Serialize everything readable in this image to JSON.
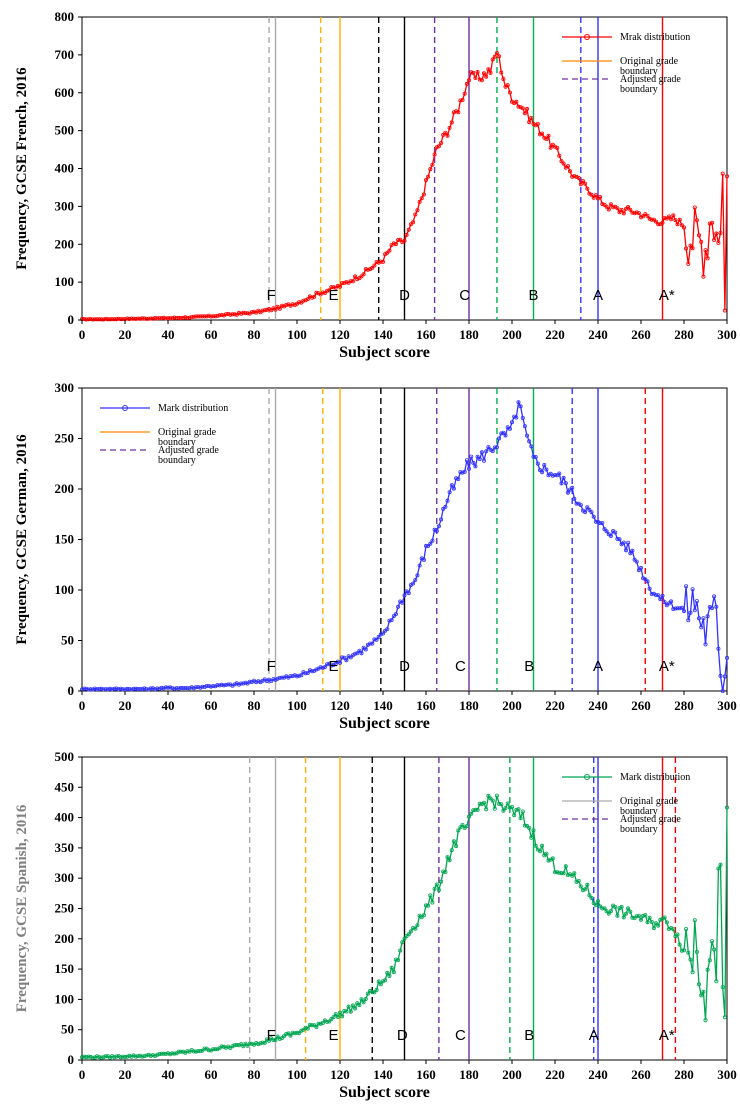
{
  "chart_data": [
    {
      "type": "line",
      "ylabel": "Frequency,  GCSE French, 2016",
      "ylabel_color": "#000000",
      "xlabel": "Subject score",
      "xlim": [
        0,
        300
      ],
      "xticks": [
        0,
        20,
        40,
        60,
        80,
        100,
        120,
        140,
        160,
        180,
        200,
        220,
        240,
        260,
        280,
        300
      ],
      "ylim": [
        0,
        800
      ],
      "yticks": [
        0,
        100,
        200,
        300,
        400,
        500,
        600,
        700,
        800
      ],
      "color": "#ff0000",
      "legend": {
        "position": "top-right",
        "series": "Mrak distribution",
        "original": "Original grade boundary",
        "adjusted": "Adjusted grade boundary",
        "original_color": "#ff8800",
        "adjusted_color": "#7030a0"
      },
      "grade_labels": [
        {
          "text": "F",
          "x": 88
        },
        {
          "text": "E",
          "x": 117
        },
        {
          "text": "D",
          "x": 150
        },
        {
          "text": "C",
          "x": 178
        },
        {
          "text": "B",
          "x": 210
        },
        {
          "text": "A",
          "x": 240
        },
        {
          "text": "A*",
          "x": 272
        }
      ],
      "boundaries": [
        {
          "x": 87,
          "color": "#aaaaaa",
          "style": "dashed"
        },
        {
          "x": 90,
          "color": "#aaaaaa",
          "style": "solid"
        },
        {
          "x": 111,
          "color": "#ffb000",
          "style": "dashed"
        },
        {
          "x": 120,
          "color": "#ffb000",
          "style": "solid"
        },
        {
          "x": 138,
          "color": "#000000",
          "style": "dashed"
        },
        {
          "x": 150,
          "color": "#000000",
          "style": "solid"
        },
        {
          "x": 164,
          "color": "#7030a0",
          "style": "dashed"
        },
        {
          "x": 180,
          "color": "#7030a0",
          "style": "solid"
        },
        {
          "x": 193,
          "color": "#00b050",
          "style": "dashed"
        },
        {
          "x": 210,
          "color": "#00b050",
          "style": "solid"
        },
        {
          "x": 232,
          "color": "#3333ff",
          "style": "dashed"
        },
        {
          "x": 240,
          "color": "#3333ff",
          "style": "solid"
        },
        {
          "x": 270,
          "color": "#ff0000",
          "style": "solid"
        }
      ],
      "curve": [
        [
          0,
          2
        ],
        [
          10,
          2
        ],
        [
          20,
          3
        ],
        [
          30,
          4
        ],
        [
          40,
          5
        ],
        [
          50,
          7
        ],
        [
          60,
          10
        ],
        [
          70,
          15
        ],
        [
          80,
          20
        ],
        [
          90,
          30
        ],
        [
          100,
          45
        ],
        [
          110,
          70
        ],
        [
          120,
          90
        ],
        [
          130,
          120
        ],
        [
          140,
          160
        ],
        [
          145,
          200
        ],
        [
          150,
          210
        ],
        [
          155,
          270
        ],
        [
          160,
          360
        ],
        [
          165,
          450
        ],
        [
          170,
          500
        ],
        [
          175,
          560
        ],
        [
          180,
          640
        ],
        [
          185,
          640
        ],
        [
          190,
          660
        ],
        [
          193,
          710
        ],
        [
          197,
          620
        ],
        [
          200,
          590
        ],
        [
          205,
          560
        ],
        [
          210,
          520
        ],
        [
          215,
          490
        ],
        [
          220,
          450
        ],
        [
          225,
          410
        ],
        [
          230,
          370
        ],
        [
          235,
          350
        ],
        [
          240,
          320
        ],
        [
          245,
          300
        ],
        [
          250,
          290
        ],
        [
          255,
          290
        ],
        [
          260,
          280
        ],
        [
          265,
          265
        ],
        [
          270,
          260
        ],
        [
          275,
          270
        ],
        [
          280,
          250
        ],
        [
          285,
          220
        ],
        [
          290,
          200
        ],
        [
          293,
          300
        ],
        [
          296,
          200
        ],
        [
          298,
          380
        ],
        [
          299,
          5
        ],
        [
          300,
          390
        ]
      ]
    },
    {
      "type": "line",
      "ylabel": "Frequency,  GCSE German, 2016",
      "ylabel_color": "#000000",
      "xlabel": "Subject score",
      "xlim": [
        0,
        300
      ],
      "xticks": [
        0,
        20,
        40,
        60,
        80,
        100,
        120,
        140,
        160,
        180,
        200,
        220,
        240,
        260,
        280,
        300
      ],
      "ylim": [
        0,
        300
      ],
      "yticks": [
        0,
        50,
        100,
        150,
        200,
        250,
        300
      ],
      "color": "#3333ff",
      "legend": {
        "position": "top-left",
        "series": "Mark distribution",
        "original": "Original grade boundary",
        "adjusted": "Adjusted grade boundary",
        "original_color": "#ff8800",
        "adjusted_color": "#7030a0"
      },
      "grade_labels": [
        {
          "text": "F",
          "x": 88
        },
        {
          "text": "E",
          "x": 117
        },
        {
          "text": "D",
          "x": 150
        },
        {
          "text": "C",
          "x": 176
        },
        {
          "text": "B",
          "x": 208
        },
        {
          "text": "A",
          "x": 240
        },
        {
          "text": "A*",
          "x": 272
        }
      ],
      "boundaries": [
        {
          "x": 87,
          "color": "#aaaaaa",
          "style": "dashed"
        },
        {
          "x": 90,
          "color": "#aaaaaa",
          "style": "solid"
        },
        {
          "x": 112,
          "color": "#ffb000",
          "style": "dashed"
        },
        {
          "x": 120,
          "color": "#ffb000",
          "style": "solid"
        },
        {
          "x": 139,
          "color": "#000000",
          "style": "dashed"
        },
        {
          "x": 150,
          "color": "#000000",
          "style": "solid"
        },
        {
          "x": 165,
          "color": "#7030a0",
          "style": "dashed"
        },
        {
          "x": 180,
          "color": "#7030a0",
          "style": "solid"
        },
        {
          "x": 193,
          "color": "#00b050",
          "style": "dashed"
        },
        {
          "x": 210,
          "color": "#00b050",
          "style": "solid"
        },
        {
          "x": 228,
          "color": "#3333ff",
          "style": "dashed"
        },
        {
          "x": 240,
          "color": "#3333ff",
          "style": "solid"
        },
        {
          "x": 262,
          "color": "#ff0000",
          "style": "dashed"
        },
        {
          "x": 270,
          "color": "#ff0000",
          "style": "solid"
        }
      ],
      "curve": [
        [
          0,
          2
        ],
        [
          10,
          2
        ],
        [
          20,
          2
        ],
        [
          30,
          2
        ],
        [
          40,
          3
        ],
        [
          50,
          3
        ],
        [
          60,
          5
        ],
        [
          70,
          6
        ],
        [
          80,
          9
        ],
        [
          90,
          12
        ],
        [
          100,
          15
        ],
        [
          110,
          22
        ],
        [
          120,
          30
        ],
        [
          130,
          40
        ],
        [
          140,
          55
        ],
        [
          145,
          75
        ],
        [
          150,
          95
        ],
        [
          155,
          110
        ],
        [
          160,
          140
        ],
        [
          165,
          160
        ],
        [
          170,
          190
        ],
        [
          175,
          210
        ],
        [
          180,
          225
        ],
        [
          185,
          230
        ],
        [
          190,
          240
        ],
        [
          195,
          250
        ],
        [
          200,
          260
        ],
        [
          203,
          285
        ],
        [
          207,
          250
        ],
        [
          210,
          230
        ],
        [
          215,
          220
        ],
        [
          220,
          215
        ],
        [
          225,
          205
        ],
        [
          230,
          190
        ],
        [
          235,
          180
        ],
        [
          240,
          165
        ],
        [
          245,
          160
        ],
        [
          250,
          150
        ],
        [
          255,
          140
        ],
        [
          260,
          120
        ],
        [
          265,
          100
        ],
        [
          270,
          90
        ],
        [
          275,
          85
        ],
        [
          280,
          80
        ],
        [
          285,
          90
        ],
        [
          290,
          60
        ],
        [
          295,
          80
        ],
        [
          298,
          5
        ],
        [
          300,
          50
        ]
      ]
    },
    {
      "type": "line",
      "ylabel": "Frequency,  GCSE Spanish, 2016",
      "ylabel_color": "#7f7f7f",
      "xlabel": "Subject score",
      "xlim": [
        0,
        300
      ],
      "xticks": [
        0,
        20,
        40,
        60,
        80,
        100,
        120,
        140,
        160,
        180,
        200,
        220,
        240,
        260,
        280,
        300
      ],
      "ylim": [
        0,
        500
      ],
      "yticks": [
        0,
        50,
        100,
        150,
        200,
        250,
        300,
        350,
        400,
        450,
        500
      ],
      "color": "#00a651",
      "legend": {
        "position": "top-right",
        "series": "Mark distribution",
        "original": "Original grade boundary",
        "adjusted": "Adjusted grade boundary",
        "original_color": "#aaaaaa",
        "adjusted_color": "#7030a0"
      },
      "grade_labels": [
        {
          "text": "F",
          "x": 88
        },
        {
          "text": "E",
          "x": 117
        },
        {
          "text": "D",
          "x": 149
        },
        {
          "text": "C",
          "x": 176
        },
        {
          "text": "B",
          "x": 208
        },
        {
          "text": "A",
          "x": 238
        },
        {
          "text": "A*",
          "x": 272
        }
      ],
      "boundaries": [
        {
          "x": 78,
          "color": "#aaaaaa",
          "style": "dashed"
        },
        {
          "x": 90,
          "color": "#aaaaaa",
          "style": "solid"
        },
        {
          "x": 104,
          "color": "#ffb000",
          "style": "dashed"
        },
        {
          "x": 120,
          "color": "#ffb000",
          "style": "solid"
        },
        {
          "x": 135,
          "color": "#000000",
          "style": "dashed"
        },
        {
          "x": 150,
          "color": "#000000",
          "style": "solid"
        },
        {
          "x": 166,
          "color": "#7030a0",
          "style": "dashed"
        },
        {
          "x": 180,
          "color": "#7030a0",
          "style": "solid"
        },
        {
          "x": 199,
          "color": "#00b050",
          "style": "dashed"
        },
        {
          "x": 210,
          "color": "#00b050",
          "style": "solid"
        },
        {
          "x": 238,
          "color": "#3333ff",
          "style": "dashed"
        },
        {
          "x": 240,
          "color": "#3333ff",
          "style": "solid"
        },
        {
          "x": 270,
          "color": "#ff0000",
          "style": "solid"
        },
        {
          "x": 276,
          "color": "#ff0000",
          "style": "dashed"
        }
      ],
      "curve": [
        [
          0,
          5
        ],
        [
          10,
          5
        ],
        [
          20,
          6
        ],
        [
          30,
          7
        ],
        [
          40,
          10
        ],
        [
          50,
          14
        ],
        [
          60,
          18
        ],
        [
          70,
          22
        ],
        [
          80,
          28
        ],
        [
          90,
          35
        ],
        [
          100,
          45
        ],
        [
          110,
          60
        ],
        [
          120,
          75
        ],
        [
          130,
          95
        ],
        [
          140,
          130
        ],
        [
          145,
          150
        ],
        [
          150,
          200
        ],
        [
          155,
          225
        ],
        [
          160,
          250
        ],
        [
          165,
          280
        ],
        [
          170,
          330
        ],
        [
          175,
          370
        ],
        [
          180,
          390
        ],
        [
          185,
          420
        ],
        [
          190,
          430
        ],
        [
          195,
          420
        ],
        [
          200,
          410
        ],
        [
          205,
          400
        ],
        [
          210,
          370
        ],
        [
          215,
          340
        ],
        [
          220,
          320
        ],
        [
          225,
          310
        ],
        [
          230,
          295
        ],
        [
          235,
          280
        ],
        [
          240,
          255
        ],
        [
          245,
          250
        ],
        [
          250,
          245
        ],
        [
          255,
          240
        ],
        [
          260,
          235
        ],
        [
          265,
          225
        ],
        [
          270,
          230
        ],
        [
          275,
          220
        ],
        [
          280,
          180
        ],
        [
          285,
          200
        ],
        [
          290,
          150
        ],
        [
          293,
          260
        ],
        [
          295,
          100
        ],
        [
          297,
          370
        ],
        [
          299,
          5
        ],
        [
          300,
          350
        ]
      ]
    }
  ]
}
